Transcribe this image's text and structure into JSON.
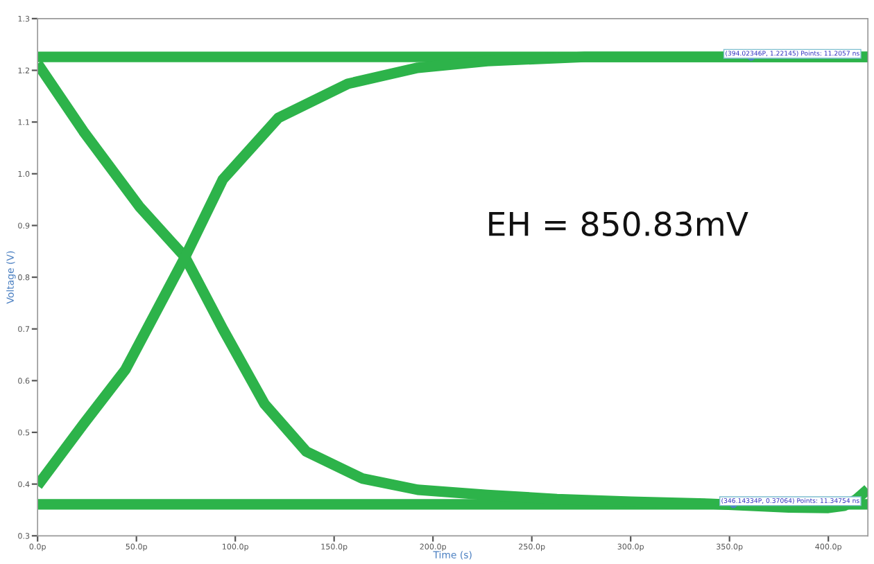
{
  "chart_data": {
    "type": "line",
    "xlabel": "Time (s)",
    "ylabel": "Voltage (V)",
    "xlim": [
      0,
      420
    ],
    "ylim": [
      0.3,
      1.3
    ],
    "xticks": [
      {
        "value": 0,
        "label": "0.0p"
      },
      {
        "value": 50,
        "label": "50.0p"
      },
      {
        "value": 100,
        "label": "100.0p"
      },
      {
        "value": 150,
        "label": "150.0p"
      },
      {
        "value": 200,
        "label": "200.0p"
      },
      {
        "value": 250,
        "label": "250.0p"
      },
      {
        "value": 300,
        "label": "300.0p"
      },
      {
        "value": 350,
        "label": "350.0p"
      },
      {
        "value": 400,
        "label": "400.0p"
      }
    ],
    "yticks": [
      0.3,
      0.4,
      0.5,
      0.6,
      0.7,
      0.8,
      0.9,
      {
        "value": 1.0,
        "label": "1.0"
      },
      1.1,
      1.2,
      1.3
    ],
    "grid": false,
    "marker": "none",
    "line_style": "solid",
    "series": [
      {
        "color": "#2db34a",
        "x": [
          0,
          420
        ],
        "values": [
          1.226,
          1.226
        ]
      },
      {
        "color": "#2db34a",
        "x": [
          0,
          420
        ],
        "values": [
          0.361,
          0.361
        ]
      },
      {
        "color": "#2db34a",
        "x": [
          0,
          23.2,
          51.4,
          74.6,
          93.7,
          114.8,
          135.9,
          164.1,
          192.3,
          227.5,
          262.7,
          300,
          340,
          380,
          400,
          408,
          414,
          420
        ],
        "values": [
          1.213,
          1.082,
          0.937,
          0.839,
          0.7,
          0.555,
          0.463,
          0.411,
          0.389,
          0.379,
          0.371,
          0.366,
          0.362,
          0.355,
          0.354,
          0.358,
          0.37,
          0.39
        ]
      },
      {
        "color": "#2db34a",
        "x": [
          0,
          23.2,
          44.4,
          74.6,
          93.7,
          121.8,
          157,
          192.3,
          227.5,
          276.8,
          368.3,
          420
        ],
        "values": [
          0.397,
          0.516,
          0.621,
          0.839,
          0.989,
          1.108,
          1.174,
          1.205,
          1.218,
          1.226,
          1.226,
          1.226
        ]
      }
    ],
    "annotations": [
      "EH = 850.83mV",
      {
        "text": "(394.02346P, 1.22145) Points: 11.2057 ns",
        "x": 361,
        "y": 1.226
      },
      {
        "text": "(346.14334P, 0.37064) Points: 11.34754 ns",
        "x": 352,
        "y": 0.361
      }
    ]
  }
}
